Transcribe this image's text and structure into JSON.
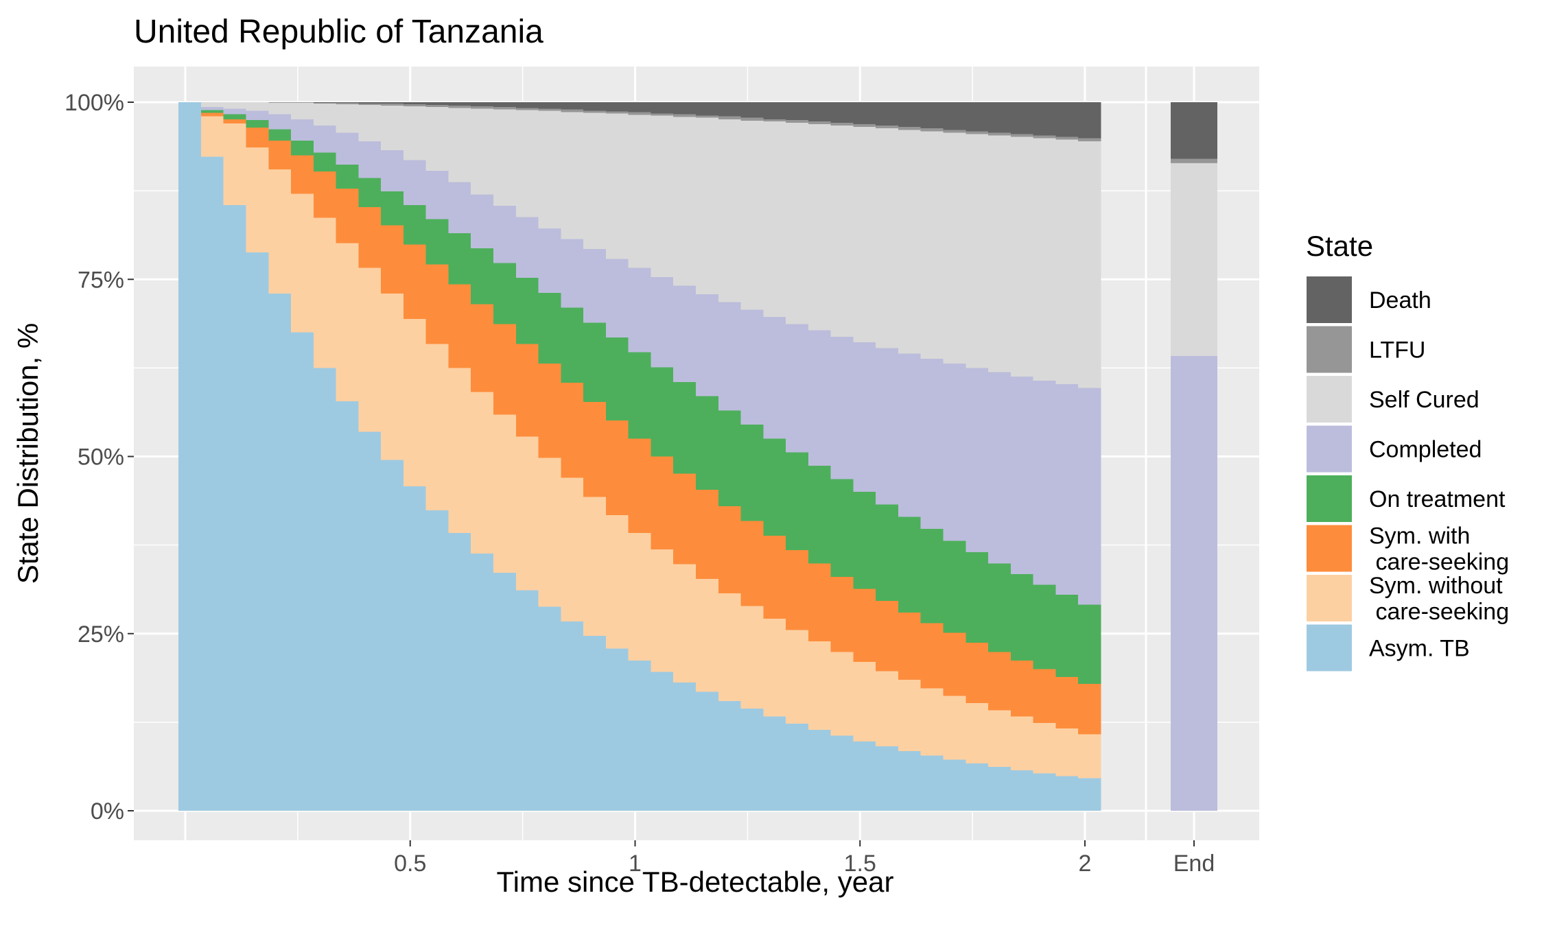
{
  "chart_data": {
    "type": "area",
    "title": "United Republic of Tanzania",
    "xlabel": "Time since TB-detectable, year",
    "ylabel": "State Distribution, %",
    "x_ticks": [
      "0.5",
      "1",
      "1.5",
      "2",
      "End"
    ],
    "y_ticks": [
      "0%",
      "25%",
      "50%",
      "75%",
      "100%"
    ],
    "xlim": [
      0,
      2.04
    ],
    "ylim": [
      0,
      100
    ],
    "grid": true,
    "legend_position": "right",
    "legend_title": "State",
    "legend": [
      {
        "label": "Death",
        "color": "#636363"
      },
      {
        "label": "LTFU",
        "color": "#969696"
      },
      {
        "label": "Self Cured",
        "color": "#d9d9d9"
      },
      {
        "label": "Completed",
        "color": "#bcbddc"
      },
      {
        "label": "On treatment",
        "color": "#4daf5b"
      },
      {
        "label": "Sym. with\n care-seeking",
        "color": "#fd8d3c"
      },
      {
        "label": "Sym. without\n care-seeking",
        "color": "#fdd0a2"
      },
      {
        "label": "Asym. TB",
        "color": "#9ecae1"
      }
    ],
    "x_step": 0.05,
    "series_order_bottom_to_top": [
      "Asym. TB",
      "Sym. without\n care-seeking",
      "Sym. with\n care-seeking",
      "On treatment",
      "Completed",
      "Self Cured",
      "LTFU",
      "Death"
    ],
    "cumulative_upper_bounds_percent": {
      "Asym. TB": [
        100,
        92.3,
        85.5,
        78.8,
        73,
        67.5,
        62.5,
        57.8,
        53.5,
        49.5,
        45.8,
        42.4,
        39.2,
        36.3,
        33.6,
        31.1,
        28.8,
        26.7,
        24.7,
        22.9,
        21.2,
        19.6,
        18.1,
        16.8,
        15.5,
        14.4,
        13.3,
        12.3,
        11.4,
        10.6,
        9.8,
        9.1,
        8.4,
        7.8,
        7.2,
        6.7,
        6.2,
        5.7,
        5.3,
        4.9,
        4.6
      ],
      "Sym. without\n care-seeking": [
        100,
        98,
        97,
        93.6,
        90.5,
        87.1,
        83.7,
        80.1,
        76.6,
        73,
        69.4,
        65.9,
        62.5,
        59.1,
        55.9,
        52.8,
        49.8,
        47,
        44.3,
        41.7,
        39.2,
        36.9,
        34.8,
        32.7,
        30.7,
        28.9,
        27.1,
        25.5,
        23.9,
        22.4,
        21,
        19.7,
        18.5,
        17.3,
        16.2,
        15.2,
        14.2,
        13.3,
        12.4,
        11.6,
        10.8
      ],
      "Sym. with\n care-seeking": [
        100,
        98.5,
        97.6,
        96.4,
        94.6,
        92.5,
        90.2,
        87.8,
        85.2,
        82.6,
        79.9,
        77.1,
        74.3,
        71.5,
        68.7,
        65.9,
        63.1,
        60.4,
        57.7,
        55.1,
        52.5,
        50,
        47.6,
        45.3,
        43,
        40.9,
        38.8,
        36.8,
        34.9,
        33,
        31.3,
        29.6,
        28,
        26.5,
        25.1,
        23.7,
        22.4,
        21.2,
        20,
        18.9,
        17.9
      ],
      "On treatment": [
        100,
        98.9,
        98.3,
        97.5,
        96.2,
        94.6,
        92.9,
        91.2,
        89.3,
        87.4,
        85.5,
        83.5,
        81.5,
        79.4,
        77.3,
        75.2,
        73.1,
        71,
        68.9,
        66.8,
        64.7,
        62.6,
        60.5,
        58.5,
        56.5,
        54.5,
        52.5,
        50.6,
        48.7,
        46.8,
        45,
        43.2,
        41.5,
        39.8,
        38.1,
        36.5,
        34.9,
        33.4,
        31.9,
        30.5,
        29.1
      ],
      "Completed": [
        100,
        99.3,
        99.1,
        98.8,
        98.3,
        97.6,
        96.7,
        95.7,
        94.5,
        93.2,
        91.8,
        90.3,
        88.7,
        87,
        85.4,
        83.8,
        82.2,
        80.7,
        79.3,
        77.9,
        76.6,
        75.3,
        74.1,
        72.9,
        71.8,
        70.7,
        69.7,
        68.7,
        67.8,
        66.9,
        66.1,
        65.3,
        64.5,
        63.8,
        63.1,
        62.5,
        61.9,
        61.3,
        60.7,
        60.2,
        59.7
      ],
      "Self Cured": [
        100,
        100,
        100,
        100,
        99.9,
        99.9,
        99.8,
        99.7,
        99.6,
        99.5,
        99.4,
        99.3,
        99.2,
        99.1,
        99,
        98.9,
        98.8,
        98.6,
        98.5,
        98.4,
        98.2,
        98.1,
        97.9,
        97.8,
        97.6,
        97.4,
        97.3,
        97.1,
        96.9,
        96.7,
        96.5,
        96.3,
        96.1,
        95.9,
        95.7,
        95.5,
        95.3,
        95.1,
        94.9,
        94.7,
        94.5
      ],
      "LTFU": [
        100,
        100,
        100,
        100,
        100,
        100,
        99.9,
        99.9,
        99.8,
        99.8,
        99.7,
        99.6,
        99.5,
        99.4,
        99.3,
        99.2,
        99.1,
        99,
        98.8,
        98.7,
        98.6,
        98.4,
        98.3,
        98.1,
        98,
        97.8,
        97.6,
        97.5,
        97.3,
        97.1,
        96.9,
        96.7,
        96.5,
        96.3,
        96.1,
        95.9,
        95.7,
        95.5,
        95.3,
        95.1,
        94.9
      ],
      "Death": [
        100,
        100,
        100,
        100,
        100,
        100,
        100,
        100,
        100,
        100,
        100,
        100,
        100,
        100,
        100,
        100,
        100,
        100,
        100,
        100,
        100,
        100,
        100,
        100,
        100,
        100,
        100,
        100,
        100,
        100,
        100,
        100,
        100,
        100,
        100,
        100,
        100,
        100,
        100,
        100,
        100
      ]
    },
    "end_bar": {
      "label": "End",
      "values": {
        "Asym. TB": 0,
        "Sym. without\n care-seeking": 0,
        "Sym. with\n care-seeking": 0,
        "On treatment": 0,
        "Completed": 64.2,
        "Self Cured": 27.2,
        "LTFU": 0.6,
        "Death": 8
      }
    }
  }
}
